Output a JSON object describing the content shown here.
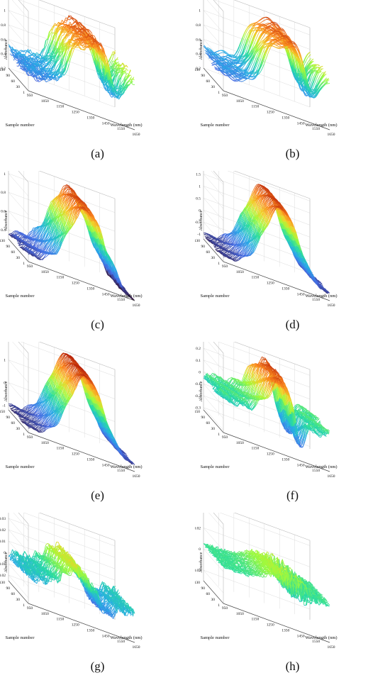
{
  "chart_data": [
    {
      "type": "surface",
      "panel_label": "(a)",
      "xlabel": "Wavelength (nm)",
      "ylabel": "Sample number",
      "zlabel": "Absorbance",
      "x_ticks": [
        "950",
        "1050",
        "1150",
        "1250",
        "1350",
        "1450",
        "1550",
        "1650"
      ],
      "y_ticks": [
        "1",
        "30",
        "60",
        "90",
        "130"
      ],
      "z_ticks": [
        "0.2",
        "0.4",
        "0.6",
        "0.8",
        "1",
        "1.2"
      ],
      "zlim": [
        0.2,
        1.3
      ],
      "wavelength_range": [
        950,
        1650
      ],
      "sample_range": [
        1,
        150
      ],
      "profile": "raw",
      "colormap": "turbo"
    },
    {
      "type": "surface",
      "panel_label": "(b)",
      "xlabel": "Wavelength (nm)",
      "ylabel": "Sample number",
      "zlabel": "Absorbance",
      "x_ticks": [
        "950",
        "1050",
        "1150",
        "1250",
        "1350",
        "1450",
        "1550",
        "1650"
      ],
      "y_ticks": [
        "1",
        "30",
        "60",
        "90",
        "130"
      ],
      "z_ticks": [
        "0.2",
        "0.4",
        "0.6",
        "0.8",
        "1",
        "1.2"
      ],
      "zlim": [
        0.2,
        1.3
      ],
      "wavelength_range": [
        950,
        1650
      ],
      "sample_range": [
        1,
        150
      ],
      "profile": "smoothed",
      "colormap": "turbo"
    },
    {
      "type": "surface",
      "panel_label": "(c)",
      "xlabel": "Wavelength (nm)",
      "ylabel": "Sample number",
      "zlabel": "Absorbance",
      "x_ticks": [
        "950",
        "1050",
        "1150",
        "1250",
        "1350",
        "1450",
        "1550",
        "1650"
      ],
      "y_ticks": [
        "1",
        "30",
        "60",
        "90",
        "130"
      ],
      "z_ticks": [
        "0.4",
        "0.6",
        "0.8",
        "1"
      ],
      "zlim": [
        0.3,
        1.15
      ],
      "wavelength_range": [
        950,
        1650
      ],
      "sample_range": [
        1,
        150
      ],
      "profile": "normalized",
      "colormap": "turbo"
    },
    {
      "type": "surface",
      "panel_label": "(d)",
      "xlabel": "Wavelength (nm)",
      "ylabel": "Sample number",
      "zlabel": "Absorbance",
      "x_ticks": [
        "950",
        "1050",
        "1150",
        "1250",
        "1350",
        "1450",
        "1550",
        "1650"
      ],
      "y_ticks": [
        "1",
        "30",
        "60",
        "90",
        "130"
      ],
      "z_ticks": [
        "-1",
        "-0.5",
        "0",
        "0.5",
        "1",
        "1.5",
        "2"
      ],
      "zlim": [
        -1.2,
        2.1
      ],
      "wavelength_range": [
        950,
        1650
      ],
      "sample_range": [
        1,
        150
      ],
      "profile": "snv",
      "colormap": "turbo"
    },
    {
      "type": "surface",
      "panel_label": "(e)",
      "xlabel": "Wavelength (nm)",
      "ylabel": "Sample number",
      "zlabel": "Absorbance",
      "x_ticks": [
        "950",
        "1050",
        "1150",
        "1250",
        "1350",
        "1450",
        "1550",
        "1650"
      ],
      "y_ticks": [
        "1",
        "30",
        "60",
        "90",
        "150"
      ],
      "z_ticks": [
        "-1",
        "0",
        "1",
        "2"
      ],
      "zlim": [
        -1.2,
        2.3
      ],
      "wavelength_range": [
        950,
        1650
      ],
      "sample_range": [
        1,
        150
      ],
      "profile": "msc",
      "colormap": "turbo"
    },
    {
      "type": "surface",
      "panel_label": "(f)",
      "xlabel": "Wavelength (nm)",
      "ylabel": "Sample number",
      "zlabel": "Absorbance",
      "x_ticks": [
        "950",
        "1050",
        "1150",
        "1250",
        "1350",
        "1450",
        "1550",
        "1650"
      ],
      "y_ticks": [
        "1",
        "30",
        "60",
        "90",
        "150"
      ],
      "z_ticks": [
        "-0.3",
        "-0.2",
        "-0.1",
        "0",
        "0.1",
        "0.2",
        "0.3"
      ],
      "zlim": [
        -0.32,
        0.35
      ],
      "wavelength_range": [
        950,
        1650
      ],
      "sample_range": [
        1,
        150
      ],
      "profile": "detrend",
      "colormap": "turbo"
    },
    {
      "type": "surface",
      "panel_label": "(g)",
      "xlabel": "Wavelength (nm)",
      "ylabel": "Sample number",
      "zlabel": "Absorbance",
      "x_ticks": [
        "950",
        "1050",
        "1150",
        "1250",
        "1350",
        "1450",
        "1550",
        "1650"
      ],
      "y_ticks": [
        "1",
        "30",
        "60",
        "90",
        "130"
      ],
      "z_ticks": [
        "-0.02",
        "-0.01",
        "0",
        "0.01",
        "0.02",
        "0.03",
        "0.04"
      ],
      "zlim": [
        -0.025,
        0.045
      ],
      "wavelength_range": [
        950,
        1650
      ],
      "sample_range": [
        1,
        150
      ],
      "profile": "first_derivative",
      "colormap": "turbo"
    },
    {
      "type": "surface",
      "panel_label": "(h)",
      "xlabel": "Wavelength (nm)",
      "ylabel": "Sample number",
      "zlabel": "Absorbance",
      "x_ticks": [
        "950",
        "1050",
        "1150",
        "1250",
        "1350",
        "1450",
        "1550",
        "1650"
      ],
      "y_ticks": [
        "1",
        "30",
        "60",
        "90",
        "130"
      ],
      "z_ticks": [
        "-0.02",
        "0",
        "0.02",
        "0.04"
      ],
      "zlim": [
        -0.03,
        0.045
      ],
      "wavelength_range": [
        950,
        1650
      ],
      "sample_range": [
        1,
        150
      ],
      "profile": "second_derivative",
      "colormap": "turbo"
    }
  ]
}
